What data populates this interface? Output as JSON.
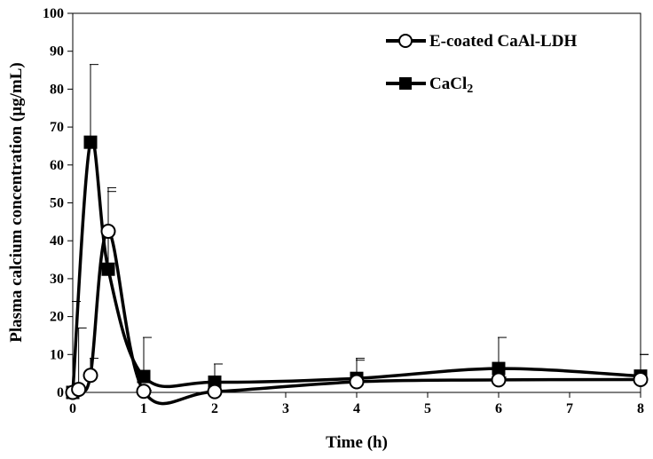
{
  "chart_data": {
    "type": "line",
    "title": "",
    "xlabel": "Time (h)",
    "ylabel": "Plasma calcium concentration (µg/mL)",
    "xlim": [
      0,
      8
    ],
    "ylim": [
      0,
      100
    ],
    "xticks": [
      0,
      1,
      2,
      3,
      4,
      5,
      6,
      7,
      8
    ],
    "yticks": [
      0,
      10,
      20,
      30,
      40,
      50,
      60,
      70,
      80,
      90,
      100
    ],
    "grid": false,
    "legend_position": "top-right",
    "series": [
      {
        "name": "E-coated CaAl-LDH",
        "marker": "open-circle",
        "color": "#000000",
        "x": [
          0,
          0.083,
          0.25,
          0.5,
          1,
          2,
          4,
          6,
          8
        ],
        "y": [
          0,
          0.8,
          4.5,
          42.5,
          0.3,
          0.2,
          2.8,
          3.3,
          3.4
        ],
        "error_upper": [
          0,
          17,
          9,
          53,
          0.5,
          0.5,
          8.5,
          4,
          10
        ]
      },
      {
        "name": "CaCl",
        "name_subscript": "2",
        "marker": "filled-square",
        "color": "#000000",
        "x": [
          0,
          0.25,
          0.5,
          1,
          2,
          4,
          6,
          8
        ],
        "y": [
          0,
          66,
          32.5,
          4.2,
          2.7,
          3.7,
          6.3,
          4.3
        ],
        "error_upper": [
          24,
          86.5,
          54,
          14.5,
          7.5,
          9,
          14.5,
          10
        ]
      }
    ]
  }
}
